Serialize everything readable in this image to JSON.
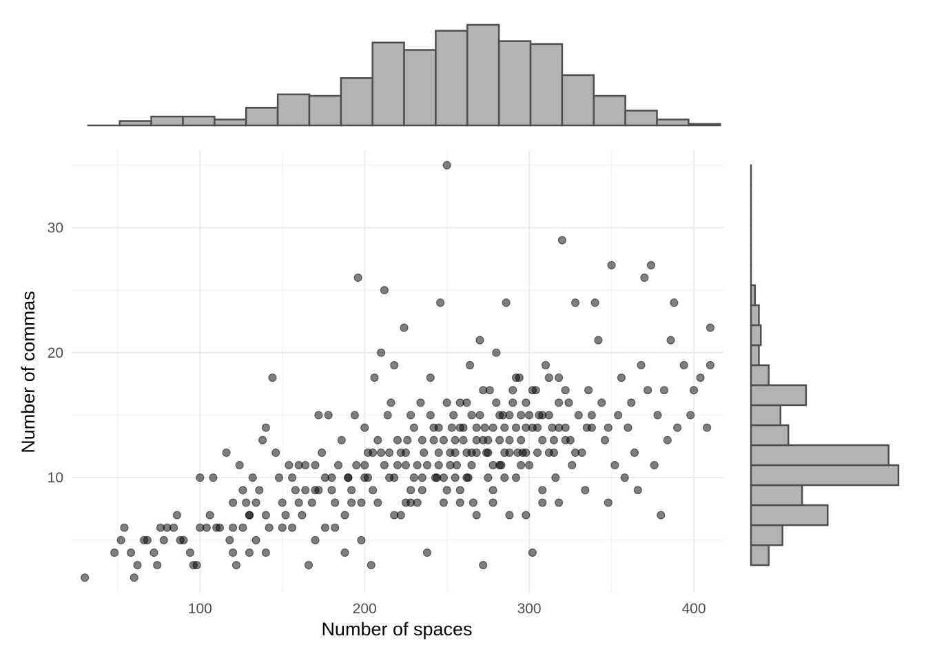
{
  "chart_data": {
    "type": "scatter",
    "xlabel": "Number of spaces",
    "ylabel": "Number of commas",
    "xlim": [
      22,
      418
    ],
    "ylim": [
      0.8,
      36.2
    ],
    "x_ticks": [
      100,
      200,
      300,
      400
    ],
    "y_ticks": [
      10,
      20,
      30
    ],
    "grid": true,
    "marginal_x_histogram": {
      "bin_width": 19.2,
      "bin_starts": [
        32,
        51.2,
        70.4,
        89.6,
        108.8,
        128,
        147.2,
        166.4,
        185.6,
        204.8,
        224,
        243.2,
        262.4,
        281.6,
        300.8,
        320,
        339.2,
        358.4,
        377.6,
        396.8
      ],
      "counts": [
        0,
        3,
        6,
        6,
        4,
        12,
        21,
        20,
        32,
        56,
        51,
        64,
        68,
        57,
        55,
        34,
        20,
        10,
        4,
        1
      ]
    },
    "marginal_y_histogram": {
      "bin_width": 1.6,
      "bin_starts": [
        3.0,
        4.6,
        6.2,
        7.8,
        9.4,
        11.0,
        12.6,
        14.2,
        15.8,
        17.4,
        19.0,
        20.6,
        22.2,
        23.8,
        25.4,
        27.0,
        28.6,
        30.2,
        31.8,
        33.4
      ],
      "counts": [
        9,
        16,
        39,
        26,
        75,
        70,
        19,
        15,
        28,
        9,
        4,
        5,
        4,
        2,
        0,
        0,
        0,
        0,
        0,
        0
      ]
    },
    "points": [
      [
        30,
        2
      ],
      [
        48,
        4
      ],
      [
        52,
        5
      ],
      [
        54,
        6
      ],
      [
        58,
        4
      ],
      [
        62,
        3
      ],
      [
        60,
        2
      ],
      [
        66,
        5
      ],
      [
        68,
        5
      ],
      [
        72,
        4
      ],
      [
        74,
        3
      ],
      [
        76,
        6
      ],
      [
        78,
        5
      ],
      [
        80,
        6
      ],
      [
        84,
        6
      ],
      [
        86,
        7
      ],
      [
        88,
        5
      ],
      [
        90,
        5
      ],
      [
        94,
        4
      ],
      [
        96,
        3
      ],
      [
        98,
        3
      ],
      [
        100,
        6
      ],
      [
        100,
        10
      ],
      [
        104,
        6
      ],
      [
        106,
        7
      ],
      [
        108,
        10
      ],
      [
        110,
        6
      ],
      [
        112,
        6
      ],
      [
        116,
        12
      ],
      [
        118,
        5
      ],
      [
        120,
        4
      ],
      [
        120,
        8
      ],
      [
        122,
        3
      ],
      [
        124,
        11
      ],
      [
        126,
        9
      ],
      [
        126,
        6
      ],
      [
        128,
        8
      ],
      [
        130,
        7
      ],
      [
        130,
        4
      ],
      [
        132,
        10
      ],
      [
        134,
        5
      ],
      [
        134,
        8
      ],
      [
        136,
        9
      ],
      [
        138,
        13
      ],
      [
        140,
        14
      ],
      [
        140,
        4
      ],
      [
        142,
        6
      ],
      [
        144,
        18
      ],
      [
        146,
        12
      ],
      [
        148,
        10
      ],
      [
        150,
        6
      ],
      [
        152,
        7
      ],
      [
        154,
        11
      ],
      [
        156,
        10
      ],
      [
        156,
        6
      ],
      [
        158,
        9
      ],
      [
        160,
        11
      ],
      [
        162,
        7
      ],
      [
        164,
        11
      ],
      [
        164,
        9
      ],
      [
        166,
        3
      ],
      [
        168,
        8
      ],
      [
        170,
        11
      ],
      [
        170,
        5
      ],
      [
        172,
        15
      ],
      [
        174,
        12
      ],
      [
        176,
        6
      ],
      [
        176,
        10
      ],
      [
        178,
        15
      ],
      [
        180,
        9
      ],
      [
        182,
        6
      ],
      [
        184,
        11
      ],
      [
        186,
        13
      ],
      [
        188,
        4
      ],
      [
        190,
        10
      ],
      [
        192,
        8
      ],
      [
        194,
        15
      ],
      [
        196,
        26
      ],
      [
        198,
        5
      ],
      [
        200,
        14
      ],
      [
        200,
        10
      ],
      [
        202,
        12
      ],
      [
        204,
        3
      ],
      [
        206,
        18
      ],
      [
        208,
        13
      ],
      [
        210,
        20
      ],
      [
        212,
        25
      ],
      [
        214,
        15
      ],
      [
        216,
        16
      ],
      [
        218,
        19
      ],
      [
        220,
        11
      ],
      [
        222,
        7
      ],
      [
        224,
        22
      ],
      [
        226,
        13
      ],
      [
        228,
        15
      ],
      [
        230,
        10
      ],
      [
        232,
        8
      ],
      [
        234,
        16
      ],
      [
        236,
        12
      ],
      [
        238,
        4
      ],
      [
        240,
        18
      ],
      [
        242,
        14
      ],
      [
        244,
        10
      ],
      [
        246,
        24
      ],
      [
        248,
        13
      ],
      [
        250,
        9
      ],
      [
        250,
        35
      ],
      [
        252,
        12
      ],
      [
        254,
        15
      ],
      [
        256,
        11
      ],
      [
        258,
        16
      ],
      [
        260,
        13
      ],
      [
        262,
        10
      ],
      [
        264,
        19
      ],
      [
        266,
        8
      ],
      [
        268,
        14
      ],
      [
        270,
        21
      ],
      [
        272,
        3
      ],
      [
        274,
        12
      ],
      [
        276,
        17
      ],
      [
        278,
        9
      ],
      [
        280,
        20
      ],
      [
        282,
        11
      ],
      [
        284,
        15
      ],
      [
        286,
        24
      ],
      [
        288,
        13
      ],
      [
        290,
        16
      ],
      [
        292,
        10
      ],
      [
        294,
        18
      ],
      [
        296,
        12
      ],
      [
        298,
        14
      ],
      [
        300,
        11
      ],
      [
        302,
        4
      ],
      [
        304,
        17
      ],
      [
        306,
        15
      ],
      [
        308,
        9
      ],
      [
        310,
        19
      ],
      [
        312,
        12
      ],
      [
        314,
        14
      ],
      [
        316,
        10
      ],
      [
        318,
        18
      ],
      [
        320,
        29
      ],
      [
        322,
        13
      ],
      [
        324,
        16
      ],
      [
        326,
        11
      ],
      [
        328,
        24
      ],
      [
        330,
        15
      ],
      [
        332,
        12
      ],
      [
        334,
        9
      ],
      [
        336,
        17
      ],
      [
        338,
        14
      ],
      [
        340,
        24
      ],
      [
        342,
        21
      ],
      [
        344,
        16
      ],
      [
        346,
        13
      ],
      [
        348,
        8
      ],
      [
        350,
        27
      ],
      [
        352,
        11
      ],
      [
        354,
        15
      ],
      [
        356,
        18
      ],
      [
        358,
        10
      ],
      [
        360,
        14
      ],
      [
        362,
        16
      ],
      [
        364,
        12
      ],
      [
        366,
        9
      ],
      [
        368,
        19
      ],
      [
        370,
        26
      ],
      [
        372,
        17
      ],
      [
        374,
        27
      ],
      [
        376,
        11
      ],
      [
        378,
        15
      ],
      [
        380,
        7
      ],
      [
        382,
        17
      ],
      [
        384,
        13
      ],
      [
        386,
        21
      ],
      [
        388,
        24
      ],
      [
        390,
        14
      ],
      [
        394,
        19
      ],
      [
        398,
        15
      ],
      [
        400,
        17
      ],
      [
        404,
        18
      ],
      [
        408,
        14
      ],
      [
        410,
        22
      ],
      [
        410,
        19
      ],
      [
        205,
        12
      ],
      [
        215,
        10
      ],
      [
        225,
        11
      ],
      [
        235,
        9
      ],
      [
        245,
        12
      ],
      [
        255,
        10
      ],
      [
        265,
        11
      ],
      [
        275,
        12
      ],
      [
        285,
        10
      ],
      [
        295,
        13
      ],
      [
        225,
        12
      ],
      [
        235,
        10
      ],
      [
        245,
        11
      ],
      [
        255,
        13
      ],
      [
        265,
        12
      ],
      [
        275,
        10
      ],
      [
        285,
        14
      ],
      [
        295,
        11
      ],
      [
        305,
        12
      ],
      [
        315,
        13
      ],
      [
        195,
        11
      ],
      [
        205,
        9
      ],
      [
        215,
        12
      ],
      [
        225,
        8
      ],
      [
        235,
        13
      ],
      [
        245,
        14
      ],
      [
        255,
        12
      ],
      [
        265,
        15
      ],
      [
        275,
        13
      ],
      [
        285,
        12
      ],
      [
        295,
        15
      ],
      [
        305,
        14
      ],
      [
        315,
        12
      ],
      [
        325,
        13
      ],
      [
        335,
        14
      ],
      [
        260,
        14
      ],
      [
        270,
        15
      ],
      [
        280,
        16
      ],
      [
        290,
        17
      ],
      [
        300,
        15
      ],
      [
        250,
        16
      ],
      [
        240,
        15
      ],
      [
        230,
        14
      ],
      [
        220,
        13
      ],
      [
        210,
        12
      ],
      [
        200,
        11
      ],
      [
        190,
        10
      ],
      [
        180,
        10
      ],
      [
        170,
        9
      ],
      [
        160,
        8
      ],
      [
        150,
        8
      ],
      [
        140,
        7
      ],
      [
        130,
        7
      ],
      [
        120,
        6
      ],
      [
        218,
        10
      ],
      [
        228,
        9
      ],
      [
        238,
        11
      ],
      [
        248,
        10
      ],
      [
        258,
        9
      ],
      [
        268,
        12
      ],
      [
        278,
        11
      ],
      [
        288,
        12
      ],
      [
        298,
        12
      ],
      [
        308,
        13
      ],
      [
        318,
        14
      ],
      [
        328,
        12
      ],
      [
        338,
        15
      ],
      [
        348,
        14
      ],
      [
        258,
        14
      ],
      [
        268,
        13
      ],
      [
        278,
        14
      ],
      [
        288,
        15
      ],
      [
        298,
        16
      ],
      [
        308,
        15
      ],
      [
        318,
        16
      ],
      [
        262,
        16
      ],
      [
        272,
        17
      ],
      [
        282,
        15
      ],
      [
        292,
        18
      ],
      [
        302,
        17
      ],
      [
        312,
        18
      ],
      [
        322,
        17
      ],
      [
        212,
        11
      ],
      [
        222,
        12
      ],
      [
        232,
        11
      ],
      [
        242,
        13
      ],
      [
        252,
        11
      ],
      [
        262,
        12
      ],
      [
        272,
        13
      ],
      [
        282,
        13
      ],
      [
        292,
        14
      ],
      [
        302,
        14
      ],
      [
        312,
        15
      ],
      [
        322,
        14
      ],
      [
        202,
        10
      ],
      [
        192,
        9
      ],
      [
        182,
        8
      ],
      [
        172,
        9
      ],
      [
        208,
        8
      ],
      [
        198,
        8
      ],
      [
        188,
        7
      ],
      [
        218,
        7
      ],
      [
        228,
        8
      ],
      [
        248,
        8
      ],
      [
        258,
        8
      ],
      [
        268,
        7
      ],
      [
        278,
        8
      ],
      [
        288,
        7
      ],
      [
        298,
        7
      ],
      [
        308,
        8
      ],
      [
        318,
        8
      ],
      [
        243,
        10
      ],
      [
        253,
        14
      ],
      [
        263,
        10
      ],
      [
        273,
        14
      ],
      [
        283,
        11
      ],
      [
        293,
        12
      ]
    ]
  }
}
